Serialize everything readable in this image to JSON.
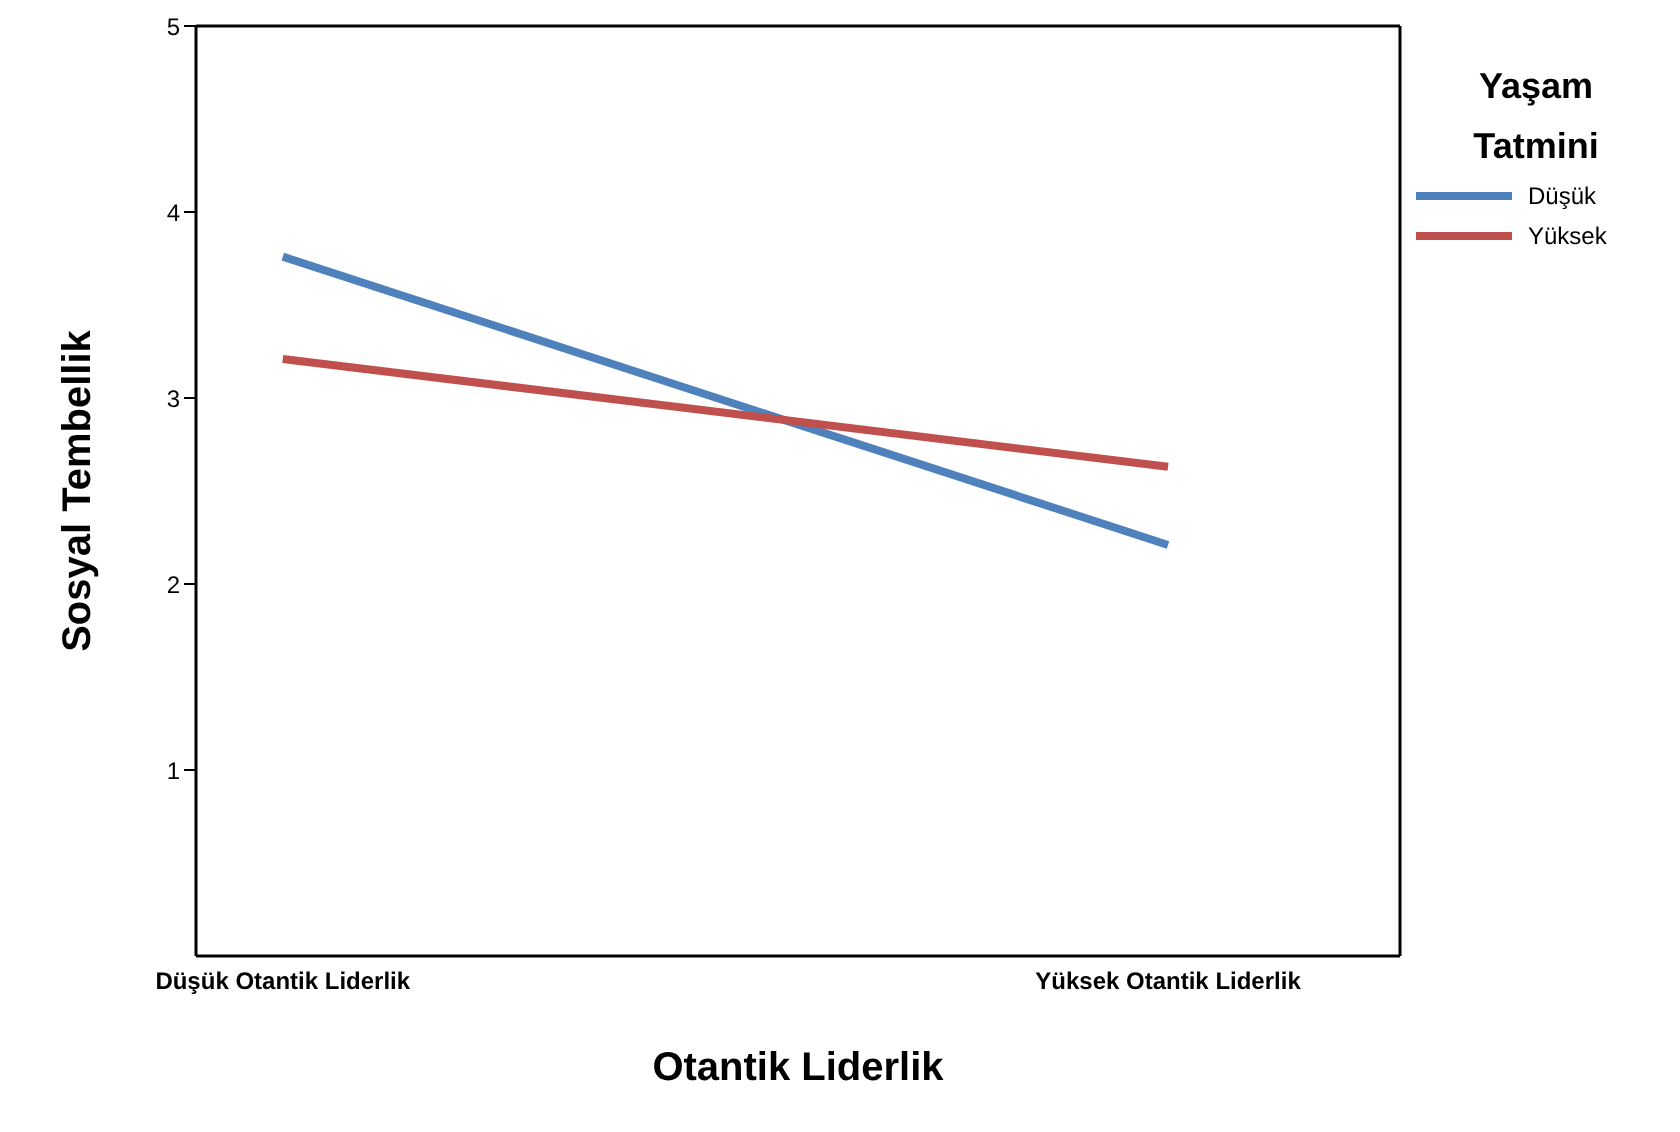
{
  "chart_data": {
    "type": "line",
    "xlabel": "Otantik Liderlik",
    "ylabel": "Sosyal Tembellik",
    "legend_title": "Yaşam Tatmini",
    "legend": "top right",
    "marker": "none",
    "line_style": "solid",
    "categories": [
      "Düşük Otantik Liderlik",
      "Yüksek Otantik Liderlik"
    ],
    "ylim": [
      0,
      5
    ],
    "yticks": [
      1,
      2,
      3,
      4,
      5
    ],
    "series": [
      {
        "name": "Düşük",
        "color": "#4f81bd",
        "values": [
          3.76,
          2.21
        ]
      },
      {
        "name": "Yüksek",
        "color": "#c0504d",
        "values": [
          3.21,
          2.63
        ]
      }
    ]
  }
}
